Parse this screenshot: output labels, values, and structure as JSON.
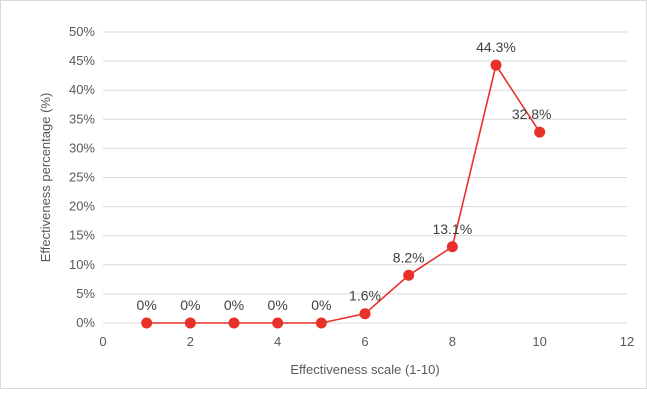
{
  "chart_data": {
    "type": "line",
    "title": "",
    "xlabel": "Effectiveness scale (1-10)",
    "ylabel": "Effectiveness percentage (%)",
    "xlim": [
      0,
      12
    ],
    "ylim": [
      0,
      50
    ],
    "x_ticks": [
      0,
      2,
      4,
      6,
      8,
      10,
      12
    ],
    "y_ticks": [
      0,
      5,
      10,
      15,
      20,
      25,
      30,
      35,
      40,
      45,
      50
    ],
    "y_tick_labels": [
      "0%",
      "5%",
      "10%",
      "15%",
      "20%",
      "25%",
      "30%",
      "35%",
      "40%",
      "45%",
      "50%"
    ],
    "grid": "horizontal",
    "legend": "none",
    "series": [
      {
        "color": "#e8312a",
        "points": [
          {
            "x": 1,
            "y": 0,
            "label": "0%"
          },
          {
            "x": 2,
            "y": 0,
            "label": "0%"
          },
          {
            "x": 3,
            "y": 0,
            "label": "0%"
          },
          {
            "x": 4,
            "y": 0,
            "label": "0%"
          },
          {
            "x": 5,
            "y": 0,
            "label": "0%"
          },
          {
            "x": 6,
            "y": 1.6,
            "label": "1.6%"
          },
          {
            "x": 7,
            "y": 8.2,
            "label": "8.2%"
          },
          {
            "x": 8,
            "y": 13.1,
            "label": "13.1%"
          },
          {
            "x": 9,
            "y": 44.3,
            "label": "44.3%"
          },
          {
            "x": 10,
            "y": 32.8,
            "label": "32.8%"
          }
        ]
      }
    ]
  }
}
